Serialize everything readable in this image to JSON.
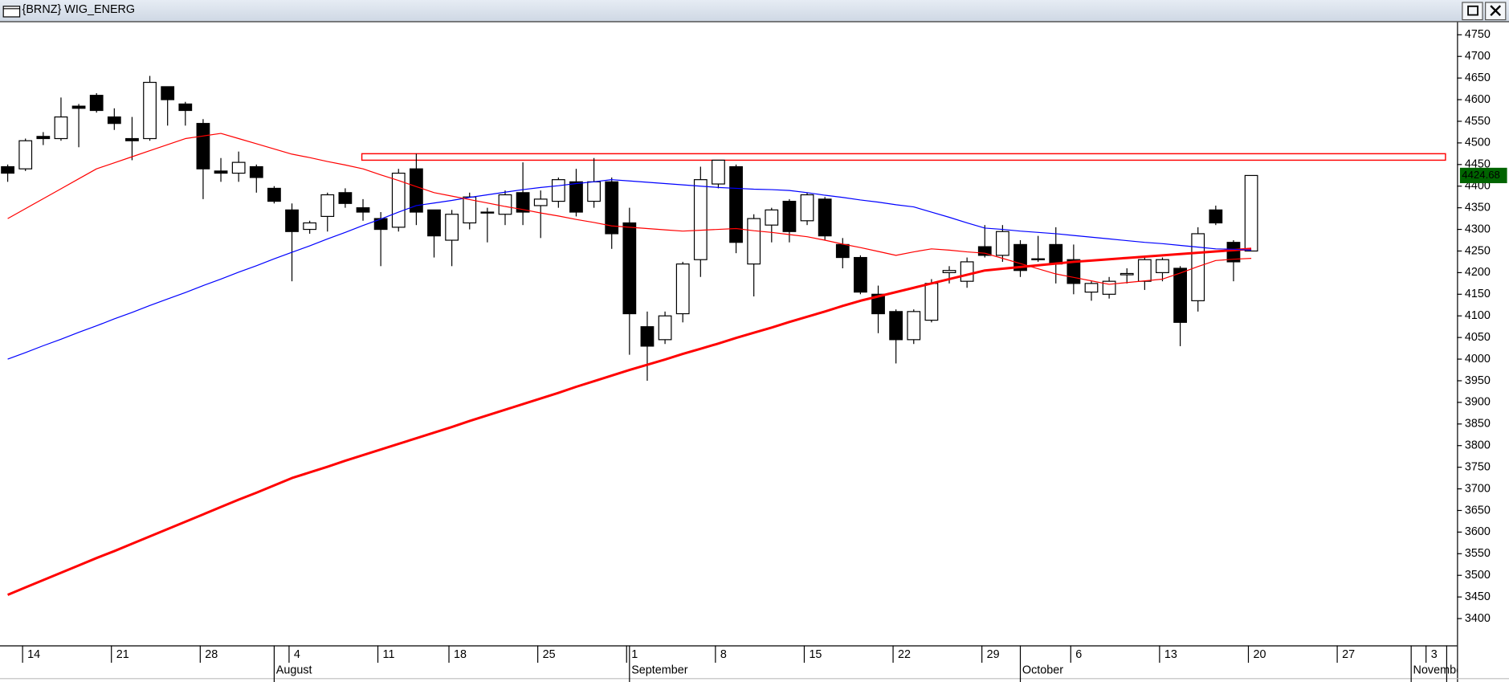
{
  "window": {
    "title": "{BRNZ} WIG_ENERG"
  },
  "chart_data": {
    "type": "candlestick",
    "categories": [
      null,
      "14",
      null,
      null,
      null,
      null,
      "21",
      null,
      null,
      null,
      null,
      "28",
      null,
      null,
      null,
      null,
      "4",
      null,
      null,
      null,
      null,
      "11",
      null,
      null,
      null,
      "18",
      null,
      null,
      null,
      null,
      "25",
      null,
      null,
      null,
      null,
      "1",
      null,
      null,
      null,
      null,
      "8",
      null,
      null,
      null,
      null,
      "15",
      null,
      null,
      null,
      null,
      "22",
      null,
      null,
      null,
      null,
      "29",
      null,
      null,
      null,
      null,
      "6",
      null,
      null,
      null,
      null,
      "13",
      null,
      null,
      null,
      null,
      "20",
      null,
      null,
      null,
      null,
      "27",
      null,
      null,
      null,
      null,
      "3",
      null
    ],
    "x_month_labels": [
      null,
      null,
      null,
      null,
      null,
      null,
      null,
      null,
      null,
      null,
      null,
      null,
      null,
      null,
      null,
      "August",
      null,
      null,
      null,
      null,
      null,
      null,
      null,
      null,
      null,
      null,
      null,
      null,
      null,
      null,
      null,
      null,
      null,
      null,
      null,
      "September",
      null,
      null,
      null,
      null,
      null,
      null,
      null,
      null,
      null,
      null,
      null,
      null,
      null,
      null,
      null,
      null,
      null,
      null,
      null,
      null,
      null,
      "October",
      null,
      null,
      null,
      null,
      null,
      null,
      null,
      null,
      null,
      null,
      null,
      null,
      null,
      null,
      null,
      null,
      null,
      null,
      null,
      null,
      null,
      "November",
      null
    ],
    "open": [
      4445,
      4440,
      4515,
      4510,
      4585,
      4610,
      4560,
      4510,
      4510,
      4630,
      4590,
      4545,
      4435,
      4430,
      4445,
      4395,
      4345,
      4300,
      4330,
      4385,
      4350,
      4325,
      4305,
      4440,
      4345,
      4275,
      4315,
      4340,
      4335,
      4385,
      4355,
      4365,
      4410,
      4365,
      4410,
      4315,
      4075,
      4045,
      4105,
      4230,
      4405,
      4445,
      4220,
      4310,
      4365,
      4320,
      4370,
      4265,
      4235,
      4150,
      4110,
      4045,
      4090,
      4200,
      4180,
      4260,
      4240,
      4265,
      4232,
      4265,
      4230,
      4155,
      4150,
      4195,
      4180,
      4200,
      4210,
      4135,
      4345,
      4270,
      4250,
      null,
      null,
      null,
      null,
      null,
      null,
      null,
      null,
      null,
      null,
      null
    ],
    "high": [
      4450,
      4510,
      4525,
      4605,
      4590,
      4615,
      4580,
      4560,
      4655,
      4630,
      4595,
      4555,
      4465,
      4480,
      4450,
      4400,
      4360,
      4320,
      4385,
      4395,
      4370,
      4340,
      4440,
      4475,
      4345,
      4345,
      4385,
      4350,
      4390,
      4455,
      4390,
      4420,
      4440,
      4465,
      4420,
      4350,
      4110,
      4110,
      4225,
      4445,
      4460,
      4450,
      4335,
      4350,
      4370,
      4385,
      4375,
      4280,
      4240,
      4170,
      4115,
      4115,
      4185,
      4215,
      4235,
      4310,
      4310,
      4275,
      4285,
      4305,
      4265,
      4180,
      4190,
      4210,
      4235,
      4235,
      4215,
      4305,
      4355,
      4275,
      4424.68,
      null,
      null,
      null,
      null,
      null,
      null,
      null,
      null,
      null,
      null,
      null
    ],
    "low": [
      4410,
      4435,
      4495,
      4505,
      4490,
      4570,
      4530,
      4460,
      4505,
      4540,
      4540,
      4370,
      4410,
      4410,
      4385,
      4360,
      4180,
      4290,
      4295,
      4350,
      4320,
      4215,
      4295,
      4310,
      4235,
      4215,
      4300,
      4270,
      4310,
      4310,
      4280,
      4350,
      4330,
      4350,
      4255,
      4010,
      3950,
      4035,
      4085,
      4190,
      4395,
      4245,
      4145,
      4270,
      4270,
      4310,
      4275,
      4210,
      4150,
      4060,
      3990,
      4035,
      4085,
      4175,
      4165,
      4235,
      4225,
      4190,
      4225,
      4175,
      4150,
      4135,
      4140,
      4175,
      4160,
      4180,
      4030,
      4110,
      4310,
      4180,
      4250,
      null,
      null,
      null,
      null,
      null,
      null,
      null,
      null,
      null,
      null,
      null
    ],
    "close": [
      4430,
      4505,
      4510,
      4560,
      4580,
      4575,
      4545,
      4505,
      4640,
      4600,
      4575,
      4440,
      4430,
      4455,
      4420,
      4365,
      4295,
      4315,
      4380,
      4360,
      4340,
      4300,
      4430,
      4340,
      4285,
      4335,
      4375,
      4338,
      4380,
      4340,
      4370,
      4415,
      4340,
      4410,
      4290,
      4105,
      4030,
      4100,
      4220,
      4415,
      4460,
      4270,
      4325,
      4345,
      4295,
      4380,
      4285,
      4235,
      4155,
      4105,
      4045,
      4110,
      4175,
      4205,
      4225,
      4240,
      4295,
      4205,
      4230,
      4220,
      4175,
      4175,
      4180,
      4198,
      4230,
      4230,
      4085,
      4290,
      4315,
      4225,
      4424.68,
      null,
      null,
      null,
      null,
      null,
      null,
      null,
      null,
      null,
      null,
      null
    ],
    "up_color": "#ffffff",
    "down_color": "#000000",
    "lines": [
      {
        "color": "#ff0000",
        "width": 2.5,
        "values": [
          3455,
          3472,
          3489,
          3506,
          3523,
          3540,
          3556,
          3573,
          3590,
          3607,
          3624,
          3641,
          3658,
          3675,
          3691,
          3708,
          3725,
          3738,
          3751,
          3765,
          3778,
          3791,
          3804,
          3817,
          3830,
          3843,
          3857,
          3870,
          3883,
          3896,
          3909,
          3922,
          3936,
          3949,
          3962,
          3975,
          3987,
          3999,
          4012,
          4024,
          4036,
          4049,
          4061,
          4073,
          4086,
          4098,
          4110,
          4123,
          4135,
          4145,
          4155,
          4165,
          4175,
          4185,
          4195,
          4205,
          4209,
          4213,
          4217,
          4221,
          4225,
          4228,
          4231,
          4234,
          4237,
          4240,
          4243,
          4246,
          4249,
          4252,
          4255,
          null,
          null,
          null,
          null,
          null,
          null,
          null,
          null,
          null,
          null,
          null
        ]
      },
      {
        "color": "#0000ff",
        "width": 1,
        "values": [
          4000,
          4015,
          4031,
          4046,
          4062,
          4077,
          4093,
          4108,
          4124,
          4139,
          4154,
          4170,
          4185,
          4201,
          4216,
          4232,
          4247,
          4262,
          4278,
          4293,
          4309,
          4324,
          4340,
          4355,
          4361,
          4367,
          4374,
          4380,
          4386,
          4392,
          4397,
          4401,
          4406,
          4410,
          4415,
          4412,
          4409,
          4406,
          4403,
          4400,
          4397,
          4395,
          4393,
          4392,
          4390,
          4385,
          4379,
          4374,
          4368,
          4363,
          4357,
          4352,
          4340,
          4328,
          4315,
          4303,
          4300,
          4296,
          4293,
          4290,
          4286,
          4282,
          4278,
          4274,
          4270,
          4267,
          4263,
          4259,
          4255,
          4254,
          4252,
          null,
          null,
          null,
          null,
          null,
          null,
          null,
          null,
          null,
          null,
          null
        ]
      },
      {
        "color": "#ff0000",
        "width": 1,
        "values": [
          4325,
          4348,
          4371,
          4394,
          4417,
          4440,
          4454,
          4468,
          4482,
          4496,
          4510,
          4516,
          4522,
          4510,
          4498,
          4486,
          4474,
          4466,
          4457,
          4449,
          4440,
          4426,
          4413,
          4399,
          4385,
          4377,
          4369,
          4361,
          4353,
          4346,
          4338,
          4331,
          4323,
          4316,
          4308,
          4305,
          4302,
          4299,
          4296,
          4298,
          4300,
          4302,
          4297,
          4293,
          4288,
          4283,
          4275,
          4266,
          4258,
          4249,
          4240,
          4248,
          4255,
          4252,
          4248,
          4245,
          4233,
          4221,
          4209,
          4197,
          4189,
          4181,
          4173,
          4177,
          4181,
          4185,
          4199,
          4214,
          4228,
          4231,
          4233,
          null,
          null,
          null,
          null,
          null,
          null,
          null,
          null,
          null,
          null,
          null
        ]
      }
    ],
    "resistance_zone": [
      4460,
      4475
    ],
    "resistance_color": "#ff0000",
    "last_price": 4424.68,
    "last_price_color": "#00ff00",
    "ylim": [
      3338,
      4777
    ],
    "yticks": [
      3400,
      3450,
      3500,
      3550,
      3600,
      3650,
      3700,
      3750,
      3800,
      3850,
      3900,
      3950,
      4000,
      4050,
      4100,
      4150,
      4200,
      4250,
      4300,
      4350,
      4400,
      4450,
      4500,
      4550,
      4600,
      4650,
      4700,
      4750
    ]
  }
}
